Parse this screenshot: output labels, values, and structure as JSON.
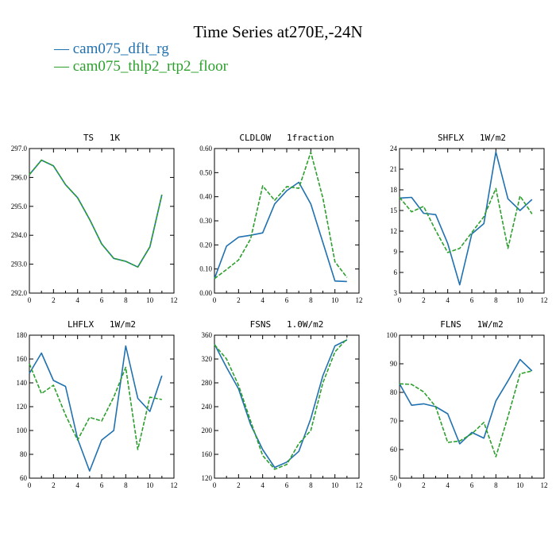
{
  "figure": {
    "title": "Time Series at270E,-24N",
    "colors": {
      "series1": "#2071b0",
      "series2": "#2ca02c"
    },
    "legend": [
      {
        "symbol": "—",
        "label": "cam075_dflt_rg",
        "color": "#2071b0",
        "dash": false
      },
      {
        "symbol": "—",
        "label": "cam075_thlp2_rtp2_floor",
        "color": "#2ca02c",
        "dash": true
      }
    ]
  },
  "chart_data": [
    {
      "type": "line",
      "title": "TS   1K",
      "x": [
        0,
        1,
        2,
        3,
        4,
        5,
        6,
        7,
        8,
        9,
        10,
        11
      ],
      "xlim": [
        0,
        12
      ],
      "xticks": [
        0,
        2,
        4,
        6,
        8,
        10,
        12
      ],
      "ylim": [
        292.0,
        297.0
      ],
      "yticks": [
        "292.0",
        "293.0",
        "294.0",
        "295.0",
        "296.0",
        "297.0"
      ],
      "series": [
        {
          "name": "cam075_dflt_rg",
          "values": [
            296.1,
            296.6,
            296.4,
            295.75,
            295.3,
            294.55,
            293.7,
            293.2,
            293.1,
            292.9,
            293.6,
            295.4
          ]
        },
        {
          "name": "cam075_thlp2_rtp2_floor",
          "values": [
            296.1,
            296.6,
            296.4,
            295.75,
            295.3,
            294.55,
            293.7,
            293.2,
            293.1,
            292.9,
            293.6,
            295.4
          ]
        }
      ]
    },
    {
      "type": "line",
      "title": "CLDLOW   1fraction",
      "x": [
        0,
        1,
        2,
        3,
        4,
        5,
        6,
        7,
        8,
        9,
        10,
        11
      ],
      "xlim": [
        0,
        12
      ],
      "xticks": [
        0,
        2,
        4,
        6,
        8,
        10,
        12
      ],
      "ylim": [
        0.0,
        0.6
      ],
      "yticks": [
        "0.00",
        "0.10",
        "0.20",
        "0.30",
        "0.40",
        "0.50",
        "0.60"
      ],
      "series": [
        {
          "name": "cam075_dflt_rg",
          "values": [
            0.06,
            0.195,
            0.232,
            0.24,
            0.25,
            0.37,
            0.425,
            0.46,
            0.37,
            0.21,
            0.05,
            0.048
          ]
        },
        {
          "name": "cam075_thlp2_rtp2_floor",
          "values": [
            0.06,
            0.098,
            0.137,
            0.225,
            0.445,
            0.385,
            0.442,
            0.435,
            0.585,
            0.395,
            0.13,
            0.065
          ]
        }
      ]
    },
    {
      "type": "line",
      "title": "SHFLX   1W/m2",
      "x": [
        0,
        1,
        2,
        3,
        4,
        5,
        6,
        7,
        8,
        9,
        10,
        11
      ],
      "xlim": [
        0,
        12
      ],
      "xticks": [
        0,
        2,
        4,
        6,
        8,
        10,
        12
      ],
      "ylim": [
        3,
        24
      ],
      "yticks": [
        "3",
        "6",
        "9",
        "12",
        "15",
        "18",
        "21",
        "24"
      ],
      "series": [
        {
          "name": "cam075_dflt_rg",
          "values": [
            16.8,
            16.9,
            14.6,
            14.4,
            10.2,
            4.2,
            11.6,
            13.1,
            23.5,
            16.7,
            15.0,
            16.6
          ]
        },
        {
          "name": "cam075_thlp2_rtp2_floor",
          "values": [
            16.9,
            14.8,
            15.6,
            12.1,
            8.9,
            9.5,
            11.8,
            14.1,
            18.2,
            9.5,
            17.1,
            14.5
          ]
        }
      ]
    },
    {
      "type": "line",
      "title": "LHFLX   1W/m2",
      "x": [
        0,
        1,
        2,
        3,
        4,
        5,
        6,
        7,
        8,
        9,
        10,
        11
      ],
      "xlim": [
        0,
        12
      ],
      "xticks": [
        0,
        2,
        4,
        6,
        8,
        10,
        12
      ],
      "ylim": [
        60,
        180
      ],
      "yticks": [
        "60",
        "80",
        "100",
        "120",
        "140",
        "160",
        "180"
      ],
      "series": [
        {
          "name": "cam075_dflt_rg",
          "values": [
            148,
            165,
            142,
            137,
            93,
            66,
            92,
            100,
            171,
            127,
            116,
            146
          ]
        },
        {
          "name": "cam075_thlp2_rtp2_floor",
          "values": [
            156,
            131,
            138,
            113,
            92,
            111,
            108,
            128,
            153,
            84,
            128,
            126
          ]
        }
      ]
    },
    {
      "type": "line",
      "title": "FSNS   1.0W/m2",
      "x": [
        0,
        1,
        2,
        3,
        4,
        5,
        6,
        7,
        8,
        9,
        10,
        11
      ],
      "xlim": [
        0,
        12
      ],
      "xticks": [
        0,
        2,
        4,
        6,
        8,
        10,
        12
      ],
      "ylim": [
        120,
        360
      ],
      "yticks": [
        "120",
        "160",
        "200",
        "240",
        "280",
        "320",
        "360"
      ],
      "series": [
        {
          "name": "cam075_dflt_rg",
          "values": [
            345,
            306,
            270,
            210,
            168,
            138,
            147,
            165,
            220,
            292,
            342,
            352
          ]
        },
        {
          "name": "cam075_thlp2_rtp2_floor",
          "values": [
            344,
            320,
            276,
            216,
            158,
            135,
            143,
            178,
            200,
            280,
            332,
            354
          ]
        }
      ]
    },
    {
      "type": "line",
      "title": "FLNS   1W/m2",
      "x": [
        0,
        1,
        2,
        3,
        4,
        5,
        6,
        7,
        8,
        9,
        10,
        11
      ],
      "xlim": [
        0,
        12
      ],
      "xticks": [
        0,
        2,
        4,
        6,
        8,
        10,
        12
      ],
      "ylim": [
        50,
        100
      ],
      "yticks": [
        "50",
        "60",
        "70",
        "80",
        "90",
        "100"
      ],
      "series": [
        {
          "name": "cam075_dflt_rg",
          "values": [
            83,
            75.5,
            76,
            75,
            72.5,
            62,
            66,
            64,
            77,
            84,
            91.5,
            87.5
          ]
        },
        {
          "name": "cam075_thlp2_rtp2_floor",
          "values": [
            83,
            82.8,
            80.2,
            75,
            62.5,
            63,
            65.5,
            69.5,
            57.5,
            71.5,
            86.5,
            87.5
          ]
        }
      ]
    }
  ]
}
